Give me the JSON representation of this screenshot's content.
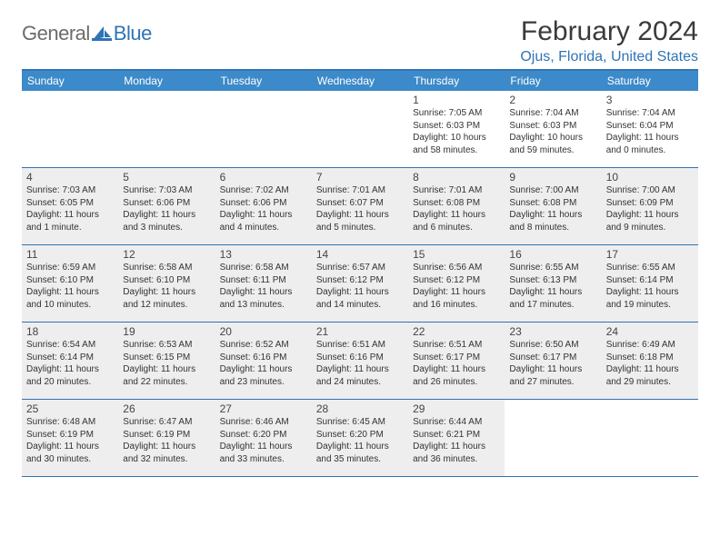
{
  "logo": {
    "general": "General",
    "blue": "Blue"
  },
  "title": "February 2024",
  "location": "Ojus, Florida, United States",
  "header_bg": "#3c8ac9",
  "accent": "#2f73b6",
  "shaded_bg": "#eeeeee",
  "weekdays": [
    "Sunday",
    "Monday",
    "Tuesday",
    "Wednesday",
    "Thursday",
    "Friday",
    "Saturday"
  ],
  "weeks": [
    [
      {
        "num": "",
        "shaded": false,
        "text": ""
      },
      {
        "num": "",
        "shaded": false,
        "text": ""
      },
      {
        "num": "",
        "shaded": false,
        "text": ""
      },
      {
        "num": "",
        "shaded": false,
        "text": ""
      },
      {
        "num": "1",
        "shaded": false,
        "text": "Sunrise: 7:05 AM\nSunset: 6:03 PM\nDaylight: 10 hours and 58 minutes."
      },
      {
        "num": "2",
        "shaded": false,
        "text": "Sunrise: 7:04 AM\nSunset: 6:03 PM\nDaylight: 10 hours and 59 minutes."
      },
      {
        "num": "3",
        "shaded": false,
        "text": "Sunrise: 7:04 AM\nSunset: 6:04 PM\nDaylight: 11 hours and 0 minutes."
      }
    ],
    [
      {
        "num": "4",
        "shaded": true,
        "text": "Sunrise: 7:03 AM\nSunset: 6:05 PM\nDaylight: 11 hours and 1 minute."
      },
      {
        "num": "5",
        "shaded": true,
        "text": "Sunrise: 7:03 AM\nSunset: 6:06 PM\nDaylight: 11 hours and 3 minutes."
      },
      {
        "num": "6",
        "shaded": true,
        "text": "Sunrise: 7:02 AM\nSunset: 6:06 PM\nDaylight: 11 hours and 4 minutes."
      },
      {
        "num": "7",
        "shaded": true,
        "text": "Sunrise: 7:01 AM\nSunset: 6:07 PM\nDaylight: 11 hours and 5 minutes."
      },
      {
        "num": "8",
        "shaded": true,
        "text": "Sunrise: 7:01 AM\nSunset: 6:08 PM\nDaylight: 11 hours and 6 minutes."
      },
      {
        "num": "9",
        "shaded": true,
        "text": "Sunrise: 7:00 AM\nSunset: 6:08 PM\nDaylight: 11 hours and 8 minutes."
      },
      {
        "num": "10",
        "shaded": true,
        "text": "Sunrise: 7:00 AM\nSunset: 6:09 PM\nDaylight: 11 hours and 9 minutes."
      }
    ],
    [
      {
        "num": "11",
        "shaded": true,
        "text": "Sunrise: 6:59 AM\nSunset: 6:10 PM\nDaylight: 11 hours and 10 minutes."
      },
      {
        "num": "12",
        "shaded": true,
        "text": "Sunrise: 6:58 AM\nSunset: 6:10 PM\nDaylight: 11 hours and 12 minutes."
      },
      {
        "num": "13",
        "shaded": true,
        "text": "Sunrise: 6:58 AM\nSunset: 6:11 PM\nDaylight: 11 hours and 13 minutes."
      },
      {
        "num": "14",
        "shaded": true,
        "text": "Sunrise: 6:57 AM\nSunset: 6:12 PM\nDaylight: 11 hours and 14 minutes."
      },
      {
        "num": "15",
        "shaded": true,
        "text": "Sunrise: 6:56 AM\nSunset: 6:12 PM\nDaylight: 11 hours and 16 minutes."
      },
      {
        "num": "16",
        "shaded": true,
        "text": "Sunrise: 6:55 AM\nSunset: 6:13 PM\nDaylight: 11 hours and 17 minutes."
      },
      {
        "num": "17",
        "shaded": true,
        "text": "Sunrise: 6:55 AM\nSunset: 6:14 PM\nDaylight: 11 hours and 19 minutes."
      }
    ],
    [
      {
        "num": "18",
        "shaded": true,
        "text": "Sunrise: 6:54 AM\nSunset: 6:14 PM\nDaylight: 11 hours and 20 minutes."
      },
      {
        "num": "19",
        "shaded": true,
        "text": "Sunrise: 6:53 AM\nSunset: 6:15 PM\nDaylight: 11 hours and 22 minutes."
      },
      {
        "num": "20",
        "shaded": true,
        "text": "Sunrise: 6:52 AM\nSunset: 6:16 PM\nDaylight: 11 hours and 23 minutes."
      },
      {
        "num": "21",
        "shaded": true,
        "text": "Sunrise: 6:51 AM\nSunset: 6:16 PM\nDaylight: 11 hours and 24 minutes."
      },
      {
        "num": "22",
        "shaded": true,
        "text": "Sunrise: 6:51 AM\nSunset: 6:17 PM\nDaylight: 11 hours and 26 minutes."
      },
      {
        "num": "23",
        "shaded": true,
        "text": "Sunrise: 6:50 AM\nSunset: 6:17 PM\nDaylight: 11 hours and 27 minutes."
      },
      {
        "num": "24",
        "shaded": true,
        "text": "Sunrise: 6:49 AM\nSunset: 6:18 PM\nDaylight: 11 hours and 29 minutes."
      }
    ],
    [
      {
        "num": "25",
        "shaded": true,
        "text": "Sunrise: 6:48 AM\nSunset: 6:19 PM\nDaylight: 11 hours and 30 minutes."
      },
      {
        "num": "26",
        "shaded": true,
        "text": "Sunrise: 6:47 AM\nSunset: 6:19 PM\nDaylight: 11 hours and 32 minutes."
      },
      {
        "num": "27",
        "shaded": true,
        "text": "Sunrise: 6:46 AM\nSunset: 6:20 PM\nDaylight: 11 hours and 33 minutes."
      },
      {
        "num": "28",
        "shaded": true,
        "text": "Sunrise: 6:45 AM\nSunset: 6:20 PM\nDaylight: 11 hours and 35 minutes."
      },
      {
        "num": "29",
        "shaded": true,
        "text": "Sunrise: 6:44 AM\nSunset: 6:21 PM\nDaylight: 11 hours and 36 minutes."
      },
      {
        "num": "",
        "shaded": false,
        "text": ""
      },
      {
        "num": "",
        "shaded": false,
        "text": ""
      }
    ]
  ]
}
